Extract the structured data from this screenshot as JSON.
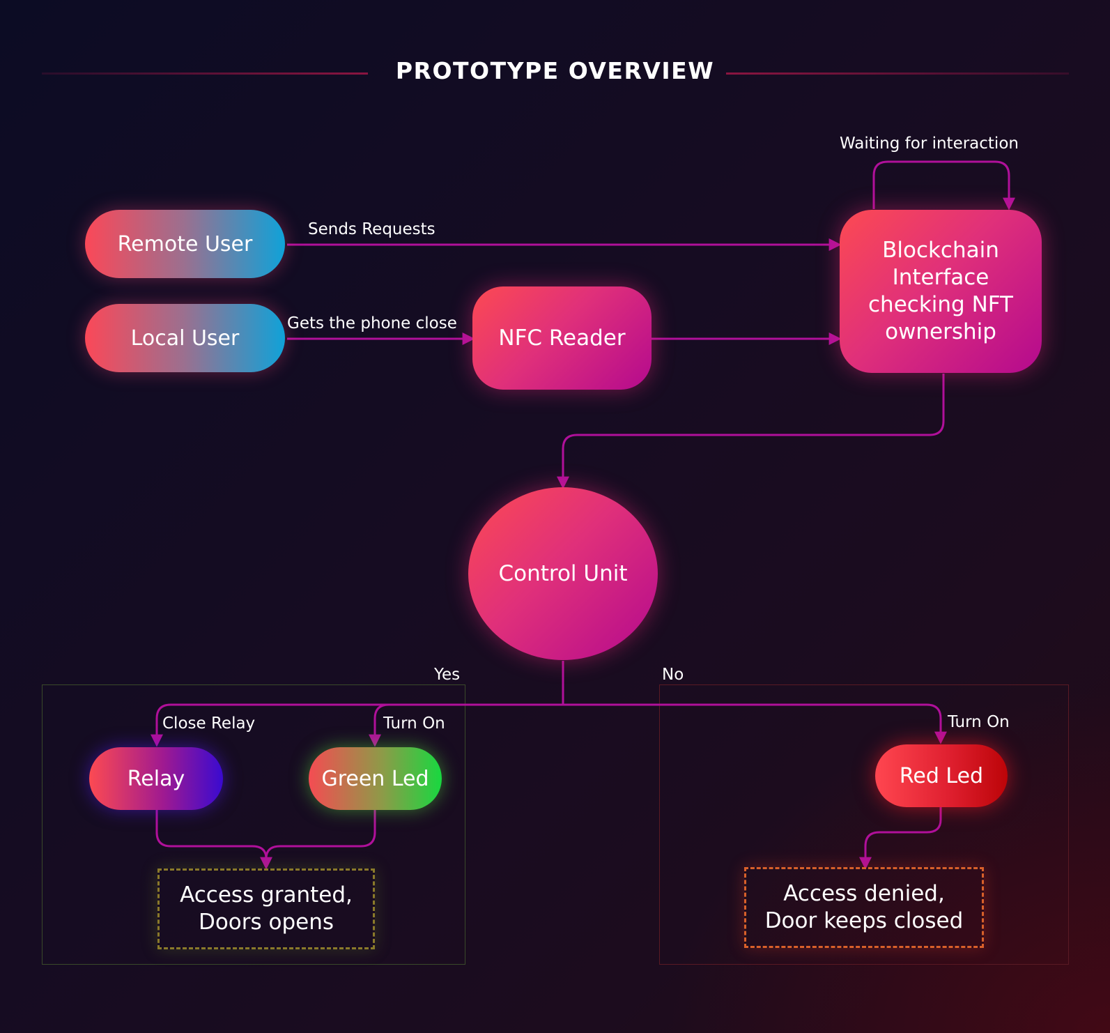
{
  "title": "PROTOTYPE OVERVIEW",
  "nodes": {
    "remote_user": "Remote User",
    "local_user": "Local User",
    "nfc_reader": "NFC Reader",
    "blockchain": "Blockchain Interface checking NFT ownership",
    "control_unit": "Control Unit",
    "relay": "Relay",
    "green_led": "Green Led",
    "red_led": "Red Led"
  },
  "edge_labels": {
    "waiting": "Waiting for interaction",
    "sends_requests": "Sends Requests",
    "gets_phone_close": "Gets the phone close",
    "yes": "Yes",
    "no": "No",
    "close_relay": "Close Relay",
    "turn_on_green": "Turn On",
    "turn_on_red": "Turn On"
  },
  "results": {
    "granted": "Access granted, Doors opens",
    "denied": "Access denied, Door keeps closed"
  },
  "colors": {
    "connector": "#b0109a",
    "yes_panel_border": "#3a4a2a",
    "no_panel_border": "#5a1a24"
  }
}
